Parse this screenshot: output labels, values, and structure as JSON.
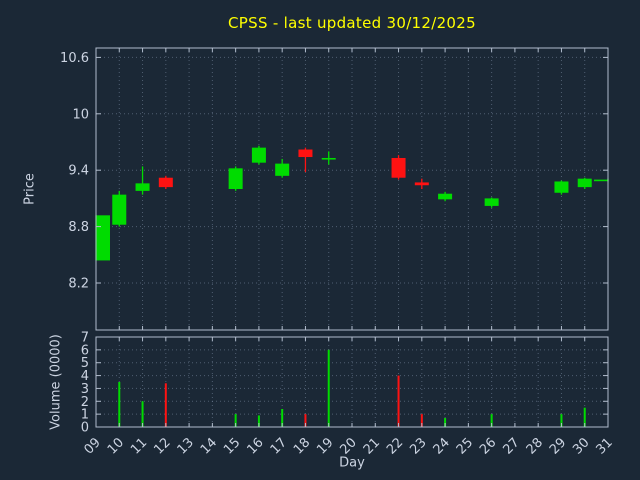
{
  "title": "CPSS - last updated 30/12/2025",
  "colors": {
    "background": "#1b2836",
    "title": "#ffff00",
    "text": "#ccd4e2",
    "grid": "#8494ac",
    "border": "#b2bdcd",
    "up": "#00dc00",
    "down": "#ff1212"
  },
  "chart_data": [
    {
      "type": "candlestick",
      "ylabel": "Price",
      "ylim": [
        7.7,
        10.7
      ],
      "xlim": [
        9,
        31
      ],
      "grid": true,
      "yticks": [
        8.2,
        8.8,
        9.4,
        10,
        10.6
      ],
      "yticklabels": [
        "8.2",
        "8.8",
        "9.4",
        "10",
        "10.6"
      ],
      "candles": [
        {
          "day": "09",
          "open": 8.44,
          "high": 8.92,
          "low": 8.44,
          "close": 8.92
        },
        {
          "day": "10",
          "open": 8.82,
          "high": 9.18,
          "low": 8.8,
          "close": 9.14
        },
        {
          "day": "11",
          "open": 9.18,
          "high": 9.44,
          "low": 9.14,
          "close": 9.26
        },
        {
          "day": "12",
          "open": 9.32,
          "high": 9.34,
          "low": 9.2,
          "close": 9.22
        },
        {
          "day": "15",
          "open": 9.2,
          "high": 9.44,
          "low": 9.18,
          "close": 9.42
        },
        {
          "day": "16",
          "open": 9.48,
          "high": 9.66,
          "low": 9.46,
          "close": 9.64
        },
        {
          "day": "17",
          "open": 9.34,
          "high": 9.52,
          "low": 9.32,
          "close": 9.47
        },
        {
          "day": "18",
          "open": 9.62,
          "high": 9.64,
          "low": 9.38,
          "close": 9.54
        },
        {
          "day": "19",
          "open": 9.52,
          "high": 9.6,
          "low": 9.46,
          "close": 9.53
        },
        {
          "day": "22",
          "open": 9.53,
          "high": 9.56,
          "low": 9.3,
          "close": 9.32
        },
        {
          "day": "23",
          "open": 9.27,
          "high": 9.31,
          "low": 9.2,
          "close": 9.24
        },
        {
          "day": "24",
          "open": 9.09,
          "high": 9.17,
          "low": 9.07,
          "close": 9.15
        },
        {
          "day": "26",
          "open": 9.02,
          "high": 9.11,
          "low": 9.0,
          "close": 9.1
        },
        {
          "day": "29",
          "open": 9.16,
          "high": 9.29,
          "low": 9.14,
          "close": 9.28
        },
        {
          "day": "30",
          "open": 9.22,
          "high": 9.32,
          "low": 9.2,
          "close": 9.31
        },
        {
          "day": "31",
          "open": 9.3,
          "high": 9.31,
          "low": 9.28,
          "close": 9.3
        }
      ]
    },
    {
      "type": "bar",
      "ylabel": "Volume (0000)",
      "xlabel": "Day",
      "ylim": [
        0,
        7
      ],
      "grid": true,
      "yticks": [
        0,
        1,
        2,
        3,
        4,
        5,
        6,
        7
      ],
      "yticklabels": [
        "0",
        "1",
        "2",
        "3",
        "4",
        "5",
        "6",
        "7"
      ],
      "xticks": [
        9,
        10,
        11,
        12,
        13,
        14,
        15,
        16,
        17,
        18,
        19,
        20,
        21,
        22,
        23,
        24,
        25,
        26,
        27,
        28,
        29,
        30,
        31
      ],
      "xticklabels": [
        "09",
        "10",
        "11",
        "12",
        "13",
        "14",
        "15",
        "16",
        "17",
        "18",
        "19",
        "20",
        "21",
        "22",
        "23",
        "24",
        "25",
        "26",
        "27",
        "28",
        "29",
        "30",
        "31"
      ],
      "bars": [
        {
          "day": "10",
          "value": 3.5,
          "dir": "up"
        },
        {
          "day": "11",
          "value": 2.0,
          "dir": "up"
        },
        {
          "day": "12",
          "value": 3.4,
          "dir": "down"
        },
        {
          "day": "15",
          "value": 1.0,
          "dir": "up"
        },
        {
          "day": "16",
          "value": 0.9,
          "dir": "up"
        },
        {
          "day": "17",
          "value": 1.4,
          "dir": "up"
        },
        {
          "day": "18",
          "value": 1.0,
          "dir": "down"
        },
        {
          "day": "19",
          "value": 6.0,
          "dir": "up"
        },
        {
          "day": "22",
          "value": 4.0,
          "dir": "down"
        },
        {
          "day": "23",
          "value": 1.0,
          "dir": "down"
        },
        {
          "day": "24",
          "value": 0.7,
          "dir": "up"
        },
        {
          "day": "26",
          "value": 1.0,
          "dir": "up"
        },
        {
          "day": "29",
          "value": 1.0,
          "dir": "up"
        },
        {
          "day": "30",
          "value": 1.5,
          "dir": "up"
        }
      ]
    }
  ]
}
